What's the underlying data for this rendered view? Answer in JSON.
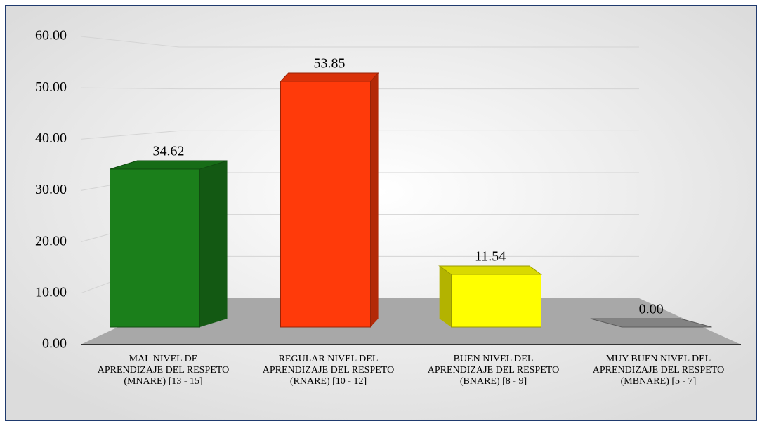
{
  "chart_data": {
    "type": "bar3d",
    "categories": [
      "MAL NIVEL DE APRENDIZAJE DEL RESPETO (MNARE) [13 - 15]",
      "REGULAR NIVEL DEL APRENDIZAJE DEL RESPETO (RNARE) [10 - 12]",
      "BUEN NIVEL DEL APRENDIZAJE DEL RESPETO (BNARE) [8 - 9]",
      "MUY BUEN NIVEL DEL APRENDIZAJE DEL RESPETO (MBNARE) [5 - 7]"
    ],
    "values": [
      34.62,
      53.85,
      11.54,
      0
    ],
    "value_labels": [
      "34.62",
      "53.85",
      "11.54",
      "0.00"
    ],
    "colors": [
      "#1b7f1b",
      "#ff3a0a",
      "#ffff00",
      "#9a9a9a"
    ],
    "ylim": [
      0,
      60
    ],
    "yticks": [
      {
        "value": 0,
        "label": "0.00"
      },
      {
        "value": 10,
        "label": "10.00"
      },
      {
        "value": 20,
        "label": "20.00"
      },
      {
        "value": 30,
        "label": "30.00"
      },
      {
        "value": 40,
        "label": "40.00"
      },
      {
        "value": 50,
        "label": "50.00"
      },
      {
        "value": 60,
        "label": "60.00"
      }
    ],
    "grid": true
  }
}
